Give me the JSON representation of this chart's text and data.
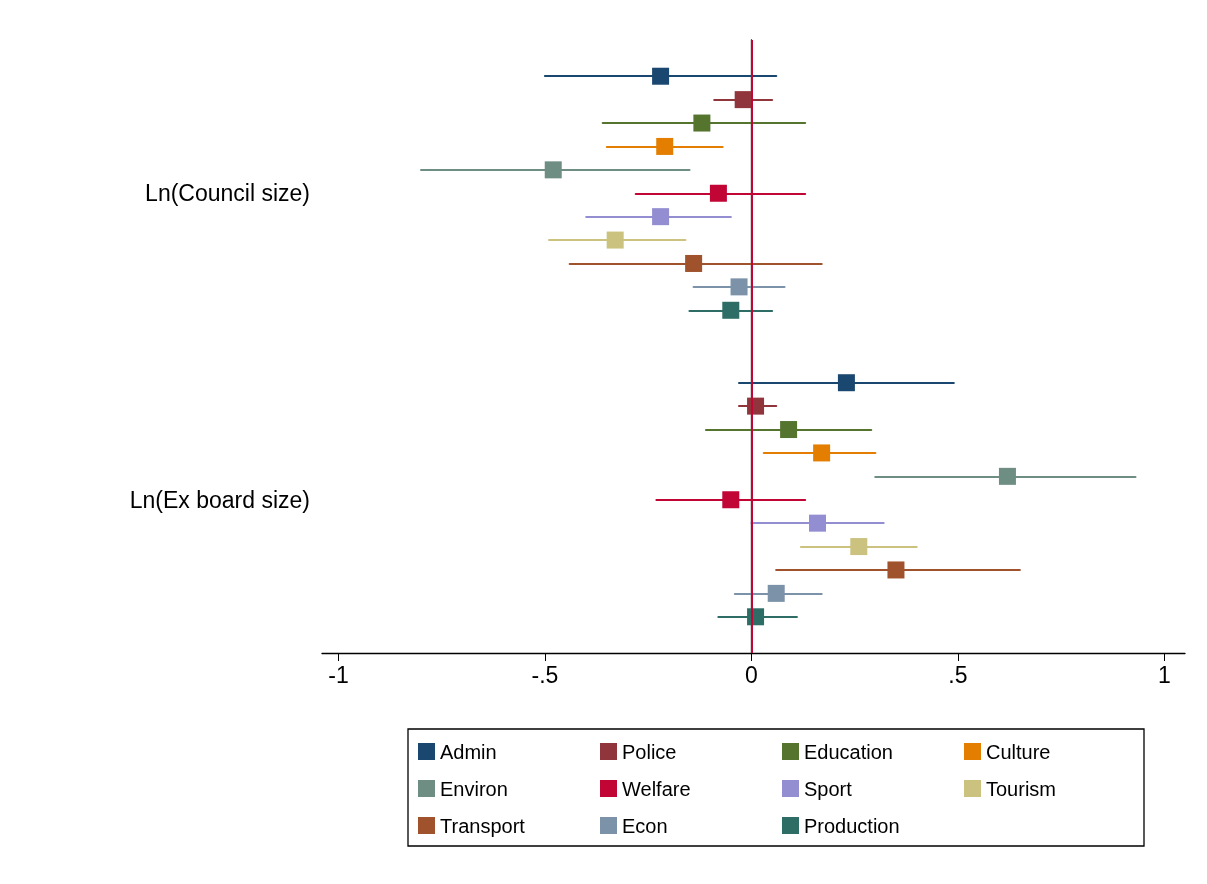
{
  "chart_data": {
    "type": "scatter",
    "orientation": "horizontal",
    "marker": "square",
    "legend": "bottom",
    "categories": [
      "Ln(Council size)",
      "Ln(Ex board size)"
    ],
    "xlim": [
      -1.04,
      1.05
    ],
    "xticks": [
      -1,
      {
        "value": -0.5,
        "label": "-.5"
      },
      0,
      {
        "value": 0.5,
        "label": ".5"
      },
      1
    ],
    "ref_lines": [
      {
        "axis": "x",
        "value": 0,
        "color": "#c10534"
      }
    ],
    "series": [
      {
        "name": "Admin",
        "color": "#1a476f",
        "values": [
          -0.22,
          0.23
        ],
        "errors": [
          [
            -0.5,
            0.06
          ],
          [
            -0.03,
            0.49
          ]
        ]
      },
      {
        "name": "Police",
        "color": "#90353b",
        "values": [
          -0.02,
          0.01
        ],
        "errors": [
          [
            -0.09,
            0.05
          ],
          [
            -0.03,
            0.06
          ]
        ]
      },
      {
        "name": "Education",
        "color": "#55752f",
        "values": [
          -0.12,
          0.09
        ],
        "errors": [
          [
            -0.36,
            0.13
          ],
          [
            -0.11,
            0.29
          ]
        ]
      },
      {
        "name": "Culture",
        "color": "#e37e00",
        "values": [
          -0.21,
          0.17
        ],
        "errors": [
          [
            -0.35,
            -0.07
          ],
          [
            0.03,
            0.3
          ]
        ]
      },
      {
        "name": "Environ",
        "color": "#6e8e84",
        "values": [
          -0.48,
          0.62
        ],
        "errors": [
          [
            -0.8,
            -0.15
          ],
          [
            0.3,
            0.93
          ]
        ]
      },
      {
        "name": "Welfare",
        "color": "#c10534",
        "values": [
          -0.08,
          -0.05
        ],
        "errors": [
          [
            -0.28,
            0.13
          ],
          [
            -0.23,
            0.13
          ]
        ]
      },
      {
        "name": "Sport",
        "color": "#938dd2",
        "values": [
          -0.22,
          0.16
        ],
        "errors": [
          [
            -0.4,
            -0.05
          ],
          [
            0,
            0.32
          ]
        ]
      },
      {
        "name": "Tourism",
        "color": "#cac27e",
        "values": [
          -0.33,
          0.26
        ],
        "errors": [
          [
            -0.49,
            -0.16
          ],
          [
            0.12,
            0.4
          ]
        ]
      },
      {
        "name": "Transport",
        "color": "#a0522d",
        "values": [
          -0.14,
          0.35
        ],
        "errors": [
          [
            -0.44,
            0.17
          ],
          [
            0.06,
            0.65
          ]
        ]
      },
      {
        "name": "Econ",
        "color": "#7b92a8",
        "values": [
          -0.03,
          0.06
        ],
        "errors": [
          [
            -0.14,
            0.08
          ],
          [
            -0.04,
            0.17
          ]
        ]
      },
      {
        "name": "Production",
        "color": "#2d6d66",
        "values": [
          -0.05,
          0.01
        ],
        "errors": [
          [
            -0.15,
            0.05
          ],
          [
            -0.08,
            0.11
          ]
        ]
      }
    ]
  }
}
